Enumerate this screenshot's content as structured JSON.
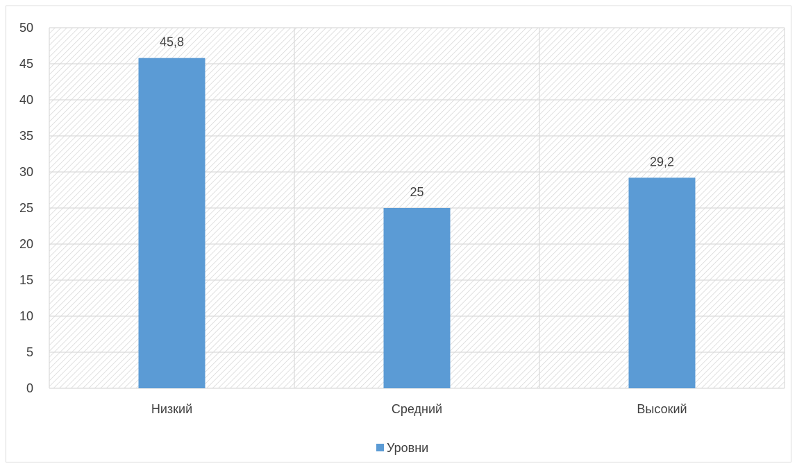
{
  "chart_data": {
    "type": "bar",
    "categories": [
      "Низкий",
      "Средний",
      "Высокий"
    ],
    "series": [
      {
        "name": "Уровни",
        "values": [
          45.8,
          25,
          29.2
        ],
        "labels": [
          "45,8",
          "25",
          "29,2"
        ]
      }
    ],
    "y_ticks": [
      "0",
      "5",
      "10",
      "15",
      "20",
      "25",
      "30",
      "35",
      "40",
      "45",
      "50"
    ],
    "ylim": [
      0,
      50
    ],
    "grid": true,
    "legend_position": "bottom",
    "bar_color": "#5b9bd5",
    "grid_color": "#d9d9d9",
    "plot_pattern": "diagonal-hatch"
  }
}
